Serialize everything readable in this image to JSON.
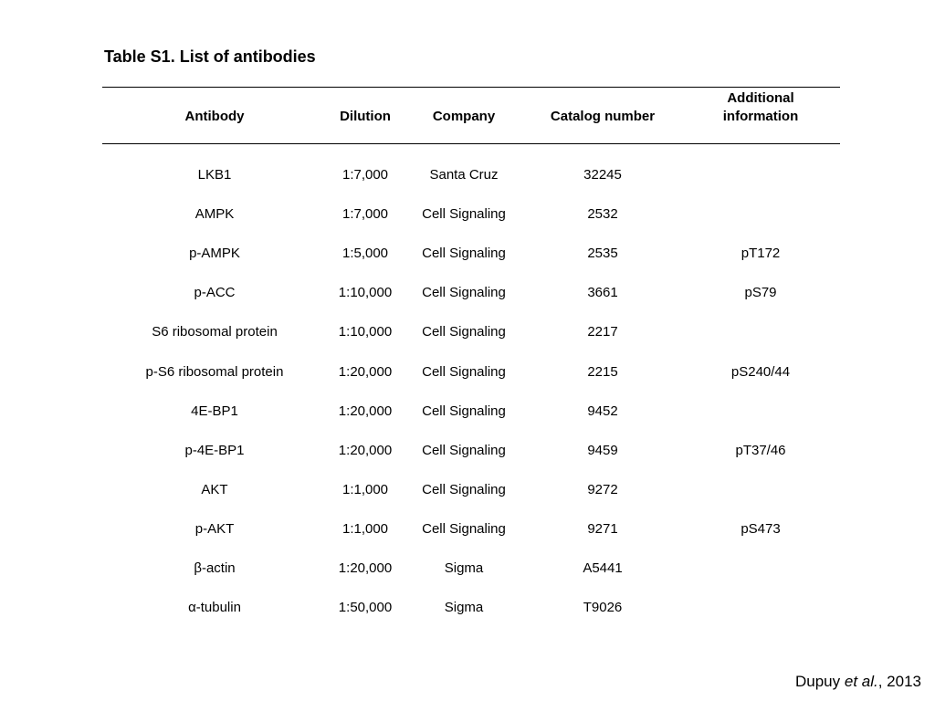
{
  "title": "Table S1. List of antibodies",
  "columns": [
    {
      "label": "Antibody"
    },
    {
      "label": "Dilution"
    },
    {
      "label": "Company"
    },
    {
      "label": "Catalog number"
    },
    {
      "label_line1": "Additional",
      "label_line2": "information"
    }
  ],
  "rows": [
    {
      "antibody": "LKB1",
      "dilution": "1:7,000",
      "company": "Santa Cruz",
      "catalog": "32245",
      "info": ""
    },
    {
      "antibody": "AMPK",
      "dilution": "1:7,000",
      "company": "Cell Signaling",
      "catalog": "2532",
      "info": ""
    },
    {
      "antibody": "p-AMPK",
      "dilution": "1:5,000",
      "company": "Cell Signaling",
      "catalog": "2535",
      "info": "pT172"
    },
    {
      "antibody": "p-ACC",
      "dilution": "1:10,000",
      "company": "Cell Signaling",
      "catalog": "3661",
      "info": "pS79"
    },
    {
      "antibody": "S6 ribosomal protein",
      "dilution": "1:10,000",
      "company": "Cell Signaling",
      "catalog": "2217",
      "info": ""
    },
    {
      "antibody": "p-S6 ribosomal protein",
      "dilution": "1:20,000",
      "company": "Cell Signaling",
      "catalog": "2215",
      "info": "pS240/44"
    },
    {
      "antibody": "4E-BP1",
      "dilution": "1:20,000",
      "company": "Cell Signaling",
      "catalog": "9452",
      "info": ""
    },
    {
      "antibody": "p-4E-BP1",
      "dilution": "1:20,000",
      "company": "Cell Signaling",
      "catalog": "9459",
      "info": "pT37/46"
    },
    {
      "antibody": "AKT",
      "dilution": "1:1,000",
      "company": "Cell Signaling",
      "catalog": "9272",
      "info": ""
    },
    {
      "antibody": "p-AKT",
      "dilution": "1:1,000",
      "company": "Cell Signaling",
      "catalog": "9271",
      "info": "pS473"
    },
    {
      "antibody": "β-actin",
      "dilution": "1:20,000",
      "company": "Sigma",
      "catalog": "A5441",
      "info": ""
    },
    {
      "antibody": "α-tubulin",
      "dilution": "1:50,000",
      "company": "Sigma",
      "catalog": "T9026",
      "info": ""
    }
  ],
  "footer": {
    "author": "Dupuy ",
    "etal": "et al.",
    "year": ", 2013"
  }
}
